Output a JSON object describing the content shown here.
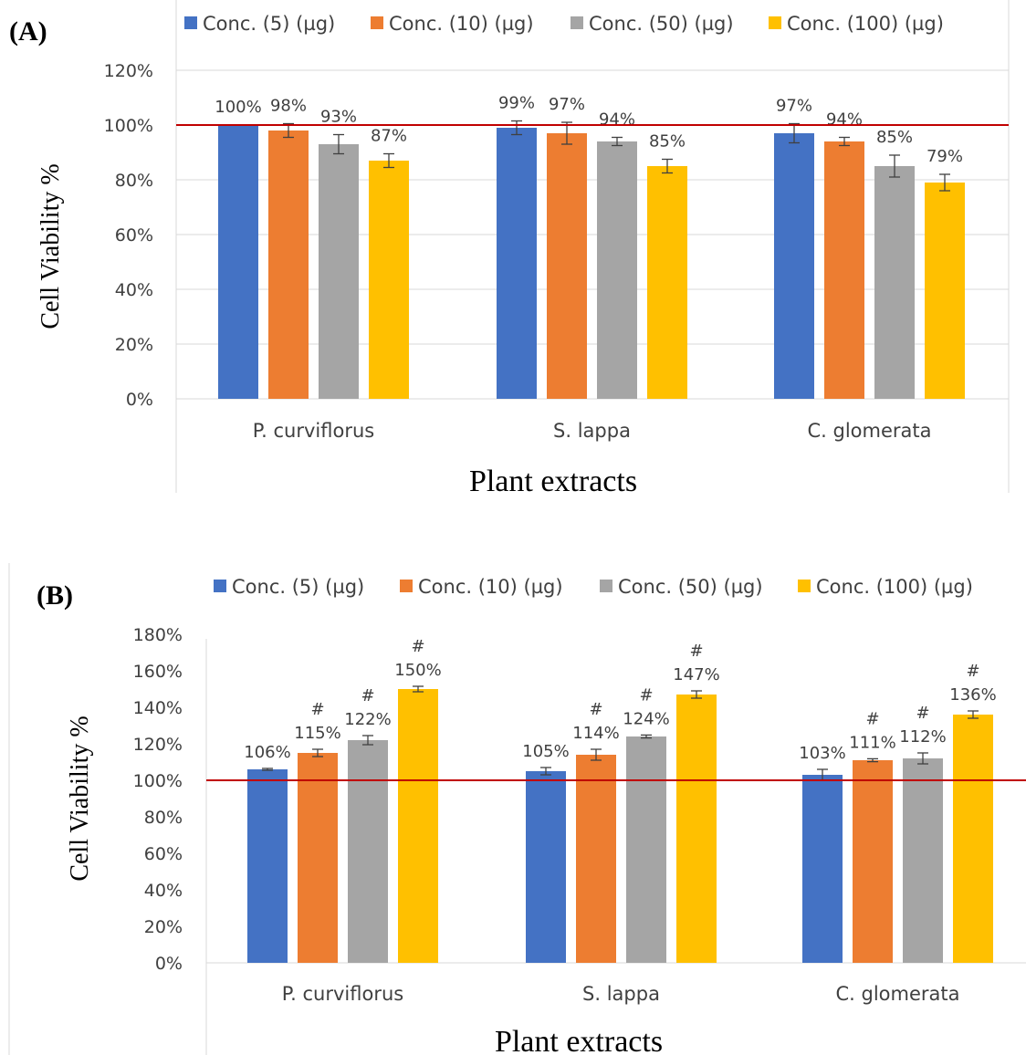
{
  "colors": {
    "conc5": "#4472C4",
    "conc10": "#ED7D31",
    "conc50": "#A5A5A5",
    "conc100": "#FFC000",
    "reference_line": "#C00000",
    "gridline": "#D9D9D9",
    "text": "#404040"
  },
  "chart_data": [
    {
      "type": "bar",
      "panel_label": "(A)",
      "ylabel": "Cell Viability %",
      "xlabel": "Plant extracts",
      "ylim": [
        0,
        120
      ],
      "yticks": [
        "0%",
        "20%",
        "40%",
        "60%",
        "80%",
        "100%",
        "120%"
      ],
      "grid": true,
      "legend_position": "top",
      "reference_line": 100,
      "categories": [
        "P. curviflorus",
        "S. lappa",
        "C. glomerata"
      ],
      "series": [
        {
          "name": "Conc. (5) (µg)",
          "values": [
            100,
            99,
            97
          ],
          "errors": [
            0,
            2.5,
            3.5
          ],
          "labels": [
            "100%",
            "99%",
            "97%"
          ],
          "markers": [
            "",
            "",
            ""
          ]
        },
        {
          "name": "Conc. (10) (µg)",
          "values": [
            98,
            97,
            94
          ],
          "errors": [
            2.5,
            4,
            1.5
          ],
          "labels": [
            "98%",
            "97%",
            "94%"
          ],
          "markers": [
            "",
            "",
            ""
          ]
        },
        {
          "name": "Conc. (50) (µg)",
          "values": [
            93,
            94,
            85
          ],
          "errors": [
            3.5,
            1.5,
            4
          ],
          "labels": [
            "93%",
            "94%",
            "85%"
          ],
          "markers": [
            "",
            "",
            ""
          ]
        },
        {
          "name": "Conc. (100) (µg)",
          "values": [
            87,
            85,
            79
          ],
          "errors": [
            2.5,
            2.5,
            3
          ],
          "labels": [
            "87%",
            "85%",
            "79%"
          ],
          "markers": [
            "",
            "",
            ""
          ]
        }
      ]
    },
    {
      "type": "bar",
      "panel_label": "(B)",
      "ylabel": "Cell Viability %",
      "xlabel": "Plant extracts",
      "ylim": [
        0,
        180
      ],
      "yticks": [
        "0%",
        "20%",
        "40%",
        "60%",
        "80%",
        "100%",
        "120%",
        "140%",
        "160%",
        "180%"
      ],
      "grid": false,
      "legend_position": "top",
      "reference_line": 100,
      "categories": [
        "P. curviflorus",
        "S. lappa",
        "C. glomerata"
      ],
      "series": [
        {
          "name": "Conc. (5) (µg)",
          "values": [
            106,
            105,
            103
          ],
          "errors": [
            0.5,
            2,
            3
          ],
          "labels": [
            "106%",
            "105%",
            "103%"
          ],
          "markers": [
            "",
            "",
            ""
          ]
        },
        {
          "name": "Conc. (10) (µg)",
          "values": [
            115,
            114,
            111
          ],
          "errors": [
            2,
            3,
            0.8
          ],
          "labels": [
            "115%",
            "114%",
            "111%"
          ],
          "markers": [
            "#",
            "#",
            "#"
          ]
        },
        {
          "name": "Conc. (50) (µg)",
          "values": [
            122,
            124,
            112
          ],
          "errors": [
            2.5,
            0.8,
            3
          ],
          "labels": [
            "122%",
            "124%",
            "112%"
          ],
          "markers": [
            "#",
            "#",
            "#"
          ]
        },
        {
          "name": "Conc. (100) (µg)",
          "values": [
            150,
            147,
            136
          ],
          "errors": [
            1.5,
            2,
            2
          ],
          "labels": [
            "150%",
            "147%",
            "136%"
          ],
          "markers": [
            "#",
            "#",
            "#"
          ]
        }
      ]
    }
  ]
}
